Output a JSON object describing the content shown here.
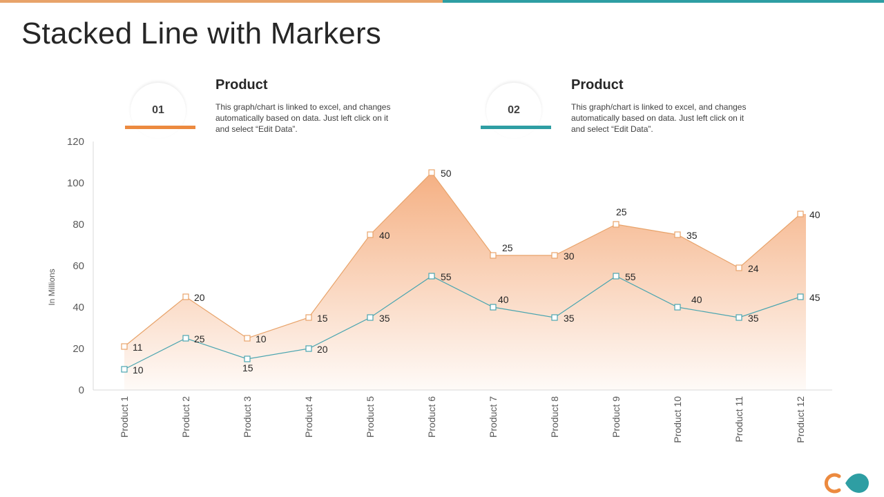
{
  "title": "Stacked Line with Markers",
  "legend": [
    {
      "number": "01",
      "heading": "Product",
      "text": "This graph/chart is linked to excel, and changes automatically based on data. Just left click on it and select “Edit Data”.",
      "color": "#ec8a3f"
    },
    {
      "number": "02",
      "heading": "Product",
      "text": "This graph/chart is linked to excel, and changes automatically based on data. Just left click on it and select “Edit Data”.",
      "color": "#2e9ea3"
    }
  ],
  "colors": {
    "series1": "#4aa5b0",
    "series2": "#e8a36a",
    "area": "#f3a26d",
    "accent_orange": "#ec8a3f",
    "accent_teal": "#2e9ea3"
  },
  "chart_data": {
    "type": "line",
    "stacked": true,
    "markers": "square",
    "categories": [
      "Product 1",
      "Product 2",
      "Product 3",
      "Product 4",
      "Product 5",
      "Product 6",
      "Product 7",
      "Product 8",
      "Product 9",
      "Product 10",
      "Product 11",
      "Product 12"
    ],
    "series": [
      {
        "values": [
          10,
          25,
          15,
          20,
          35,
          55,
          40,
          35,
          55,
          40,
          35,
          45
        ]
      },
      {
        "values": [
          11,
          20,
          10,
          15,
          40,
          50,
          25,
          30,
          25,
          35,
          24,
          40
        ]
      }
    ],
    "ylabel": "In Millions",
    "ylim": [
      0,
      120
    ],
    "yticks": [
      0,
      20,
      40,
      60,
      80,
      100,
      120
    ],
    "grid": false
  }
}
